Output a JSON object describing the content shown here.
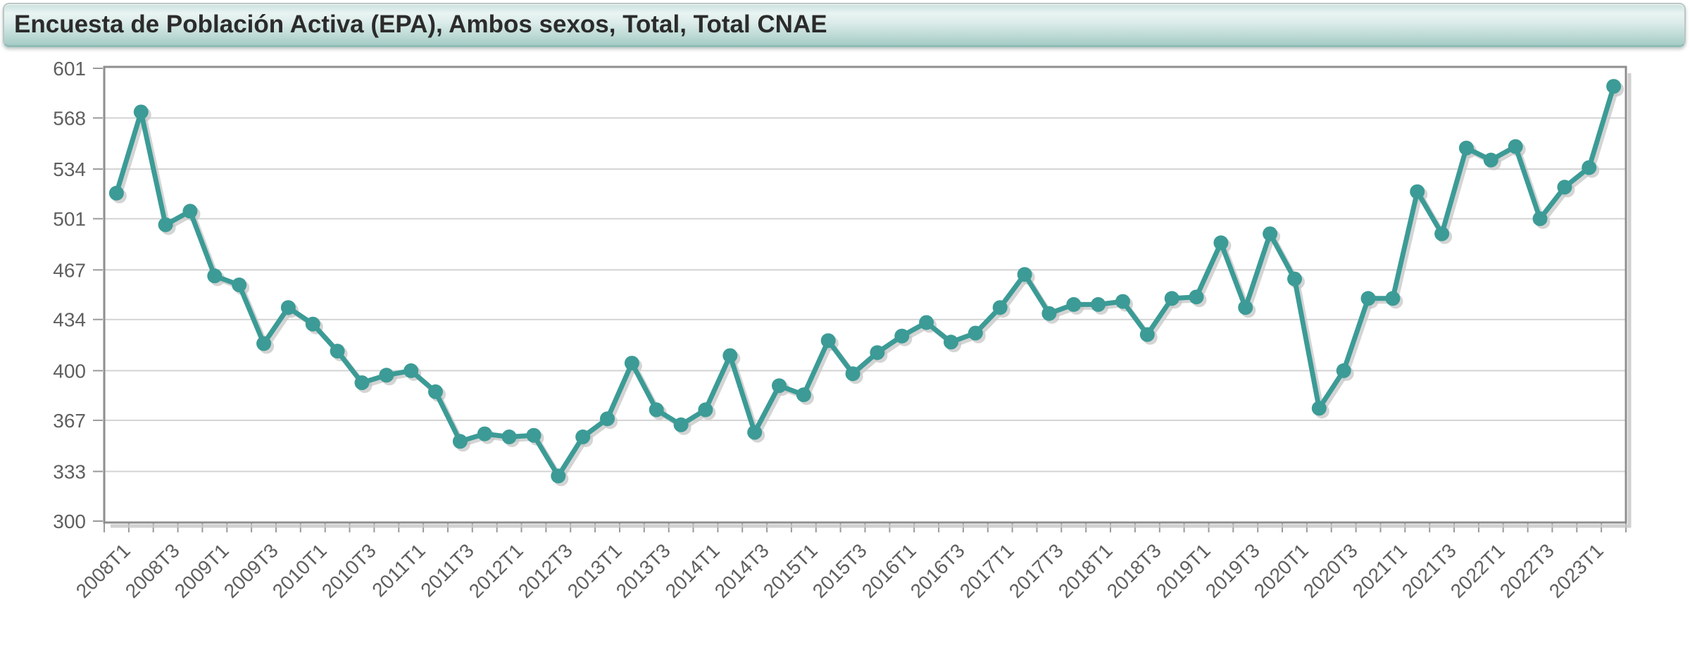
{
  "title_bar": {
    "title": "Encuesta de Población Activa (EPA), Ambos sexos, Total, Total CNAE"
  },
  "chart_data": {
    "type": "line",
    "x": [
      "2008T1",
      "2008T2",
      "2008T3",
      "2008T4",
      "2009T1",
      "2009T2",
      "2009T3",
      "2009T4",
      "2010T1",
      "2010T2",
      "2010T3",
      "2010T4",
      "2011T1",
      "2011T2",
      "2011T3",
      "2011T4",
      "2012T1",
      "2012T2",
      "2012T3",
      "2012T4",
      "2013T1",
      "2013T2",
      "2013T3",
      "2013T4",
      "2014T1",
      "2014T2",
      "2014T3",
      "2014T4",
      "2015T1",
      "2015T2",
      "2015T3",
      "2015T4",
      "2016T1",
      "2016T2",
      "2016T3",
      "2016T4",
      "2017T1",
      "2017T2",
      "2017T3",
      "2017T4",
      "2018T1",
      "2018T2",
      "2018T3",
      "2018T4",
      "2019T1",
      "2019T2",
      "2019T3",
      "2019T4",
      "2020T1",
      "2020T2",
      "2020T3",
      "2020T4",
      "2021T1",
      "2021T2",
      "2021T3",
      "2021T4",
      "2022T1",
      "2022T2",
      "2022T3",
      "2022T4",
      "2023T1",
      "2023T2"
    ],
    "values": [
      518,
      572,
      497,
      506,
      463,
      457,
      418,
      442,
      431,
      413,
      392,
      397,
      400,
      386,
      353,
      358,
      356,
      357,
      330,
      356,
      368,
      405,
      374,
      364,
      374,
      410,
      359,
      390,
      384,
      420,
      398,
      412,
      423,
      432,
      419,
      425,
      442,
      464,
      438,
      444,
      444,
      446,
      424,
      448,
      449,
      485,
      442,
      491,
      461,
      375,
      400,
      448,
      448,
      519,
      491,
      548,
      540,
      549,
      501,
      522,
      535,
      589
    ],
    "x_tick_labels": [
      "2008T1",
      "2008T3",
      "2009T1",
      "2009T3",
      "2010T1",
      "2010T3",
      "2011T1",
      "2011T3",
      "2012T1",
      "2012T3",
      "2013T1",
      "2013T3",
      "2014T1",
      "2014T3",
      "2015T1",
      "2015T3",
      "2016T1",
      "2016T3",
      "2017T1",
      "2017T3",
      "2018T1",
      "2018T3",
      "2019T1",
      "2019T3",
      "2020T1",
      "2020T3",
      "2021T1",
      "2021T3",
      "2022T1",
      "2022T3",
      "2023T1"
    ],
    "y_ticks": [
      601,
      568,
      534,
      501,
      467,
      434,
      400,
      367,
      333,
      300
    ],
    "ylim": [
      300,
      601
    ],
    "grid": "horizontal",
    "legend": "none",
    "colors": {
      "line": "#3C9B96",
      "marker": "#3C9B96",
      "shadow": "#c5c5c5",
      "grid": "#d3d3d3",
      "frame": "#8e8e8e",
      "tick": "#9a9a9a",
      "axis_label": "#5f5f5f"
    }
  }
}
